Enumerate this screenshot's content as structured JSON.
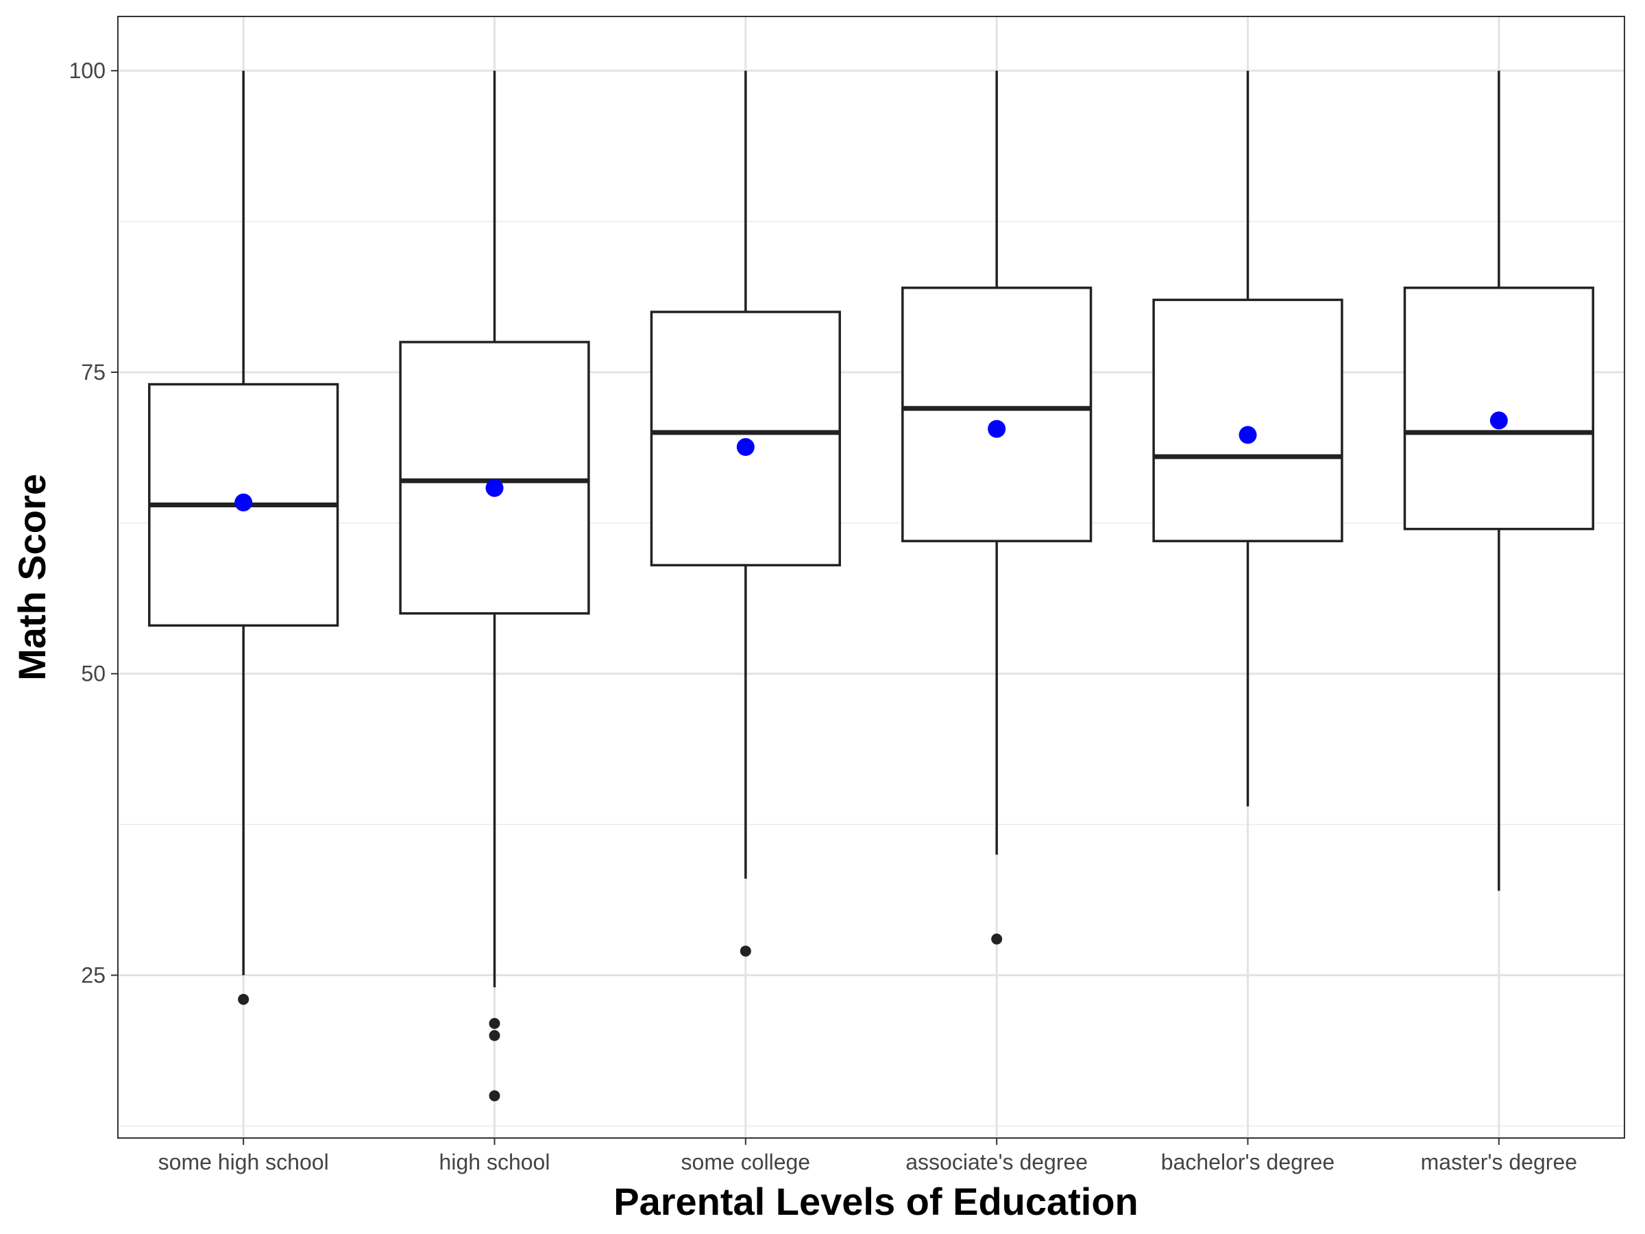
{
  "chart_data": {
    "type": "boxplot",
    "title": "",
    "xlabel": "Parental Levels of Education",
    "ylabel": "Math Score",
    "ylim": [
      11.5,
      104.5
    ],
    "yticks": [
      25,
      50,
      75,
      100
    ],
    "y_minor_gridlines": [
      12.5,
      37.5,
      62.5,
      87.5
    ],
    "grid": true,
    "mean_marker_color": "#0000ff",
    "box_color": "#222222",
    "categories": [
      "some high school",
      "high school",
      "some college",
      "associate's degree",
      "bachelor's degree",
      "master's degree"
    ],
    "boxes": [
      {
        "category": "some high school",
        "whisker_low": 25,
        "q1": 54,
        "median": 64,
        "q3": 74,
        "whisker_high": 100,
        "mean": 64.2,
        "outliers": [
          23
        ]
      },
      {
        "category": "high school",
        "whisker_low": 24,
        "q1": 55,
        "median": 66,
        "q3": 77.5,
        "whisker_high": 100,
        "mean": 65.4,
        "outliers": [
          21,
          20,
          15
        ]
      },
      {
        "category": "some college",
        "whisker_low": 33,
        "q1": 59,
        "median": 70,
        "q3": 80,
        "whisker_high": 100,
        "mean": 68.8,
        "outliers": [
          27
        ]
      },
      {
        "category": "associate's degree",
        "whisker_low": 35,
        "q1": 61,
        "median": 72,
        "q3": 82,
        "whisker_high": 100,
        "mean": 70.3,
        "outliers": [
          28
        ]
      },
      {
        "category": "bachelor's degree",
        "whisker_low": 39,
        "q1": 61,
        "median": 68,
        "q3": 81,
        "whisker_high": 100,
        "mean": 69.8,
        "outliers": []
      },
      {
        "category": "master's degree",
        "whisker_low": 32,
        "q1": 62,
        "median": 70,
        "q3": 82,
        "whisker_high": 100,
        "mean": 71.0,
        "outliers": []
      }
    ]
  }
}
